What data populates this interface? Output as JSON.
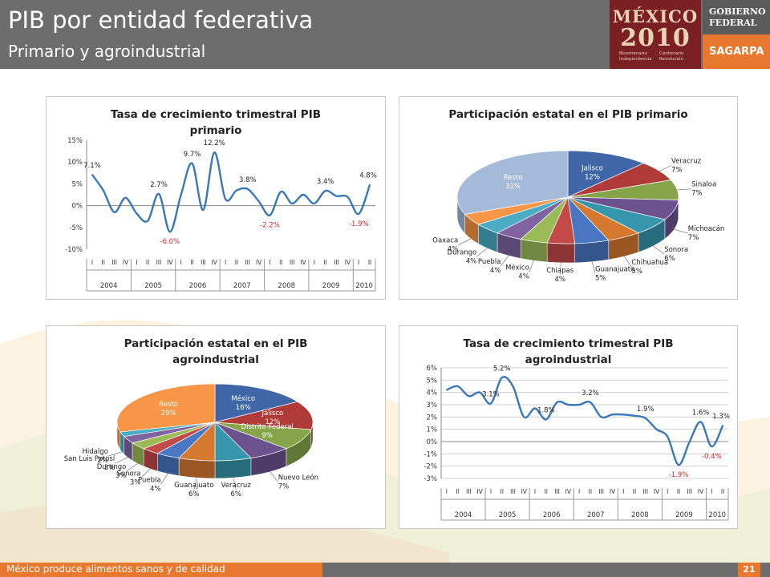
{
  "header": {
    "title": "PIB por entidad federativa",
    "subtitle": "Primario y agroindustrial"
  },
  "logos": {
    "mexico": "MÉXICO",
    "year": "2010",
    "bicentenario": "Bicentenario Independencia",
    "centenario": "Centenario Revolución",
    "gobierno_1": "GOBIERNO",
    "gobierno_2": "FEDERAL",
    "sagarpa": "SAGARPA"
  },
  "footer": {
    "text": "México produce alimentos sanos y de calidad",
    "page": "21"
  },
  "colors": {
    "header": "#6d6d6d",
    "accent_orange": "#e8782d",
    "logo_bg": "#7a1f24",
    "line": "#3a78b8",
    "negative_label": "#e02020"
  },
  "chart_data": [
    {
      "id": "primario_growth",
      "type": "line",
      "title_lines": [
        "Tasa de crecimiento trimestral PIB",
        "primario"
      ],
      "quarter_labels": [
        "I",
        "II",
        "III",
        "IV",
        "I",
        "II",
        "III",
        "IV",
        "I",
        "II",
        "III",
        "IV",
        "I",
        "II",
        "III",
        "IV",
        "I",
        "II",
        "III",
        "IV",
        "I",
        "II",
        "III",
        "IV",
        "I",
        "II"
      ],
      "years": [
        {
          "label": "2004",
          "quarters": 4
        },
        {
          "label": "2005",
          "quarters": 4
        },
        {
          "label": "2006",
          "quarters": 4
        },
        {
          "label": "2007",
          "quarters": 4
        },
        {
          "label": "2008",
          "quarters": 4
        },
        {
          "label": "2009",
          "quarters": 4
        },
        {
          "label": "2010",
          "quarters": 2
        }
      ],
      "values": [
        7.1,
        3.5,
        -1.5,
        1.8,
        -1.8,
        -3.5,
        2.7,
        -6.0,
        2.5,
        9.7,
        -1.0,
        12.2,
        1.5,
        3.5,
        3.8,
        1.0,
        -2.2,
        3.2,
        0.5,
        2.5,
        0.5,
        3.4,
        2.2,
        2.0,
        -1.9,
        4.8
      ],
      "point_labels": [
        {
          "index": 0,
          "text": "7.1%",
          "negative": false
        },
        {
          "index": 6,
          "text": "2.7%",
          "negative": false
        },
        {
          "index": 7,
          "text": "-6.0%",
          "negative": true
        },
        {
          "index": 9,
          "text": "9.7%",
          "negative": false
        },
        {
          "index": 11,
          "text": "12.2%",
          "negative": false
        },
        {
          "index": 14,
          "text": "3.8%",
          "negative": false
        },
        {
          "index": 16,
          "text": "-2.2%",
          "negative": true
        },
        {
          "index": 21,
          "text": "3.4%",
          "negative": false
        },
        {
          "index": 24,
          "text": "-1.9%",
          "negative": true
        },
        {
          "index": 25,
          "text": "4.8%",
          "negative": false
        }
      ],
      "y_ticks": [
        15,
        10,
        5,
        0,
        -5,
        -10
      ],
      "y_tick_labels": [
        "15%",
        "10%",
        "5%",
        "0%",
        "-5%",
        "-10%"
      ],
      "ylim": [
        -10,
        15
      ],
      "grid": false
    },
    {
      "id": "primario_share",
      "type": "pie",
      "title_lines": [
        "Participación estatal en el PIB primario"
      ],
      "slices": [
        {
          "name": "Jalisco",
          "value": 12,
          "label": "12%",
          "color": "#3f66a6"
        },
        {
          "name": "Veracruz",
          "value": 7,
          "label": "7%",
          "color": "#b03a37"
        },
        {
          "name": "Sinaloa",
          "value": 7,
          "label": "7%",
          "color": "#86a54a"
        },
        {
          "name": "Michoacán",
          "value": 7,
          "label": "7%",
          "color": "#6d5290"
        },
        {
          "name": "Sonora",
          "value": 6,
          "label": "6%",
          "color": "#3596ac"
        },
        {
          "name": "Chihuahua",
          "value": 5,
          "label": "5%",
          "color": "#d67930"
        },
        {
          "name": "Guanajuato",
          "value": 5,
          "label": "5%",
          "color": "#4a77c2"
        },
        {
          "name": "Chiapas",
          "value": 4,
          "label": "4%",
          "color": "#c44a48"
        },
        {
          "name": "México",
          "value": 4,
          "label": "4%",
          "color": "#9bbb59"
        },
        {
          "name": "Puebla",
          "value": 4,
          "label": "4%",
          "color": "#8064a2"
        },
        {
          "name": "Durango",
          "value": 4,
          "label": "4%",
          "color": "#4bacc6"
        },
        {
          "name": "Oaxaca",
          "value": 4,
          "label": "4%",
          "color": "#f79646"
        },
        {
          "name": "Resto",
          "value": 31,
          "label": "31%",
          "color": "#a5b9d8"
        }
      ]
    },
    {
      "id": "agro_share",
      "type": "pie",
      "title_lines": [
        "Participación estatal en el  PIB",
        "agroindustrial"
      ],
      "slices": [
        {
          "name": "México",
          "value": 16,
          "label": "16%",
          "color": "#3f66a6"
        },
        {
          "name": "Jalisco",
          "value": 12,
          "label": "12%",
          "color": "#b03a37"
        },
        {
          "name": "Distrito Federal",
          "value": 9,
          "label": "9%",
          "color": "#86a54a"
        },
        {
          "name": "Nuevo León",
          "value": 7,
          "label": "7%",
          "color": "#6d5290"
        },
        {
          "name": "Veracruz",
          "value": 6,
          "label": "6%",
          "color": "#3596ac"
        },
        {
          "name": "Guanajuato",
          "value": 6,
          "label": "6%",
          "color": "#d67930"
        },
        {
          "name": "Puebla",
          "value": 4,
          "label": "4%",
          "color": "#4a77c2"
        },
        {
          "name": "Sonora",
          "value": 3,
          "label": "3%",
          "color": "#c44a48"
        },
        {
          "name": "Durango",
          "value": 3,
          "label": "3%",
          "color": "#9bbb59"
        },
        {
          "name": "San Luis Potosí",
          "value": 3,
          "label": "3%",
          "color": "#8064a2"
        },
        {
          "name": "Hidalgo",
          "value": 2,
          "label": "2%",
          "color": "#4bacc6"
        },
        {
          "name": "Resto",
          "value": 29,
          "label": "29%",
          "color": "#f79646"
        }
      ]
    },
    {
      "id": "agro_growth",
      "type": "line",
      "title_lines": [
        "Tasa de crecimiento trimestral PIB",
        "agroindustrial"
      ],
      "quarter_labels": [
        "I",
        "II",
        "III",
        "IV",
        "I",
        "II",
        "III",
        "IV",
        "I",
        "II",
        "III",
        "IV",
        "I",
        "II",
        "III",
        "IV",
        "I",
        "II",
        "III",
        "IV",
        "I",
        "II",
        "III",
        "IV",
        "I",
        "II"
      ],
      "years": [
        {
          "label": "2004",
          "quarters": 4
        },
        {
          "label": "2005",
          "quarters": 4
        },
        {
          "label": "2006",
          "quarters": 4
        },
        {
          "label": "2007",
          "quarters": 4
        },
        {
          "label": "2008",
          "quarters": 4
        },
        {
          "label": "2009",
          "quarters": 4
        },
        {
          "label": "2010",
          "quarters": 2
        }
      ],
      "values": [
        4.2,
        4.5,
        3.7,
        4.0,
        3.1,
        5.2,
        4.5,
        2.0,
        2.7,
        1.8,
        3.2,
        3.0,
        3.0,
        3.2,
        2.0,
        2.2,
        2.2,
        2.1,
        1.9,
        1.0,
        0.4,
        -1.9,
        0.0,
        1.6,
        -0.4,
        1.3
      ],
      "point_labels": [
        {
          "index": 4,
          "text": "3.1%",
          "negative": false
        },
        {
          "index": 5,
          "text": "5.2%",
          "negative": false
        },
        {
          "index": 9,
          "text": "1.8%",
          "negative": false
        },
        {
          "index": 13,
          "text": "3.2%",
          "negative": false
        },
        {
          "index": 18,
          "text": "1.9%",
          "negative": false
        },
        {
          "index": 21,
          "text": "-1.9%",
          "negative": true
        },
        {
          "index": 23,
          "text": "1.6%",
          "negative": false
        },
        {
          "index": 24,
          "text": "-0.4%",
          "negative": true
        },
        {
          "index": 25,
          "text": "1.3%",
          "negative": false
        }
      ],
      "y_ticks": [
        6,
        5,
        4,
        3,
        2,
        1,
        0,
        -1,
        -2,
        -3
      ],
      "y_tick_labels": [
        "6%",
        "5%",
        "4%",
        "3%",
        "2%",
        "1%",
        "0%",
        "-1%",
        "-2%",
        "-3%"
      ],
      "ylim": [
        -3,
        6
      ],
      "grid": true
    }
  ]
}
